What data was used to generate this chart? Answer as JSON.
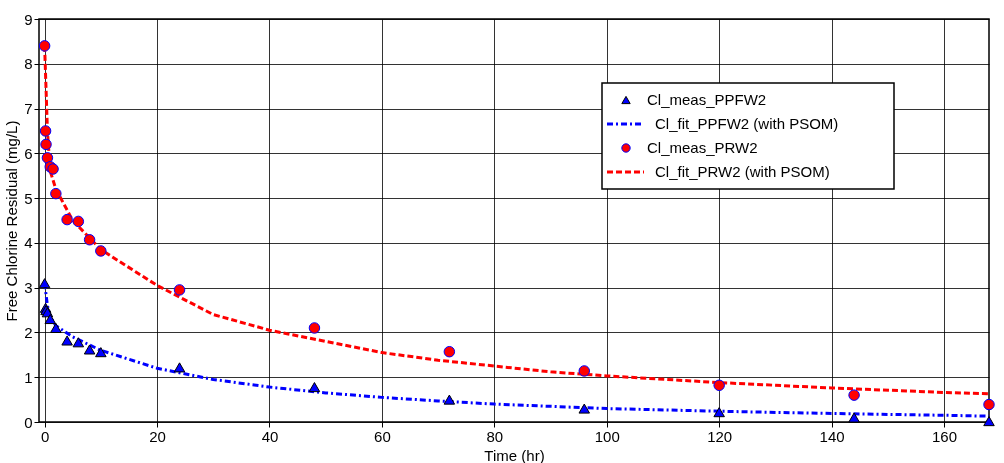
{
  "chart_data": {
    "type": "scatter",
    "xlabel": "Time (hr)",
    "ylabel": "Free Chlorine Residual (mg/L)",
    "xlim": [
      -1,
      168
    ],
    "ylim": [
      0,
      9
    ],
    "xticks": [
      0,
      20,
      40,
      60,
      80,
      100,
      120,
      140,
      160
    ],
    "yticks": [
      0,
      1,
      2,
      3,
      4,
      5,
      6,
      7,
      8,
      9
    ],
    "grid": true,
    "legend": "top right",
    "series": [
      {
        "name": "Cl_meas_PPFW2",
        "marker": "triangle",
        "color": "#0000ff",
        "x": [
          0,
          0.17,
          0.25,
          0.5,
          1,
          2,
          4,
          6,
          8,
          10,
          24,
          48,
          72,
          96,
          120,
          144,
          168
        ],
        "values": [
          3.1,
          2.55,
          2.5,
          2.45,
          2.3,
          2.1,
          1.82,
          1.78,
          1.62,
          1.56,
          1.22,
          0.78,
          0.5,
          0.3,
          0.22,
          0.1,
          0.02
        ]
      },
      {
        "name": "Cl_fit_PPFW2 (with PSOM)",
        "type": "line",
        "line_style": "dashdot",
        "color": "#0000ff",
        "x": [
          0,
          0.5,
          1,
          2,
          5,
          10,
          20,
          30,
          40,
          50,
          60,
          70,
          80,
          90,
          100,
          120,
          140,
          160,
          168
        ],
        "values": [
          3.1,
          2.6,
          2.35,
          2.15,
          1.9,
          1.6,
          1.2,
          0.95,
          0.78,
          0.65,
          0.55,
          0.47,
          0.4,
          0.35,
          0.3,
          0.24,
          0.19,
          0.15,
          0.13
        ]
      },
      {
        "name": "Cl_meas_PRW2",
        "marker": "circle",
        "color": "#ff0000",
        "x": [
          0,
          0.17,
          0.25,
          0.5,
          1,
          1.5,
          2,
          4,
          6,
          8,
          10,
          24,
          48,
          72,
          96,
          120,
          144,
          168
        ],
        "values": [
          8.4,
          6.5,
          6.2,
          5.9,
          5.7,
          5.65,
          5.1,
          4.52,
          4.48,
          4.07,
          3.82,
          2.95,
          2.1,
          1.57,
          1.14,
          0.82,
          0.6,
          0.39
        ]
      },
      {
        "name": "Cl_fit_PRW2 (with PSOM)",
        "type": "line",
        "line_style": "dashed",
        "color": "#ff0000",
        "x": [
          0,
          0.5,
          1,
          2,
          5,
          10,
          20,
          30,
          40,
          50,
          60,
          70,
          80,
          90,
          100,
          120,
          140,
          160,
          168
        ],
        "values": [
          8.4,
          6.5,
          5.6,
          5.2,
          4.5,
          3.85,
          3.05,
          2.4,
          2.05,
          1.8,
          1.55,
          1.38,
          1.25,
          1.12,
          1.03,
          0.88,
          0.76,
          0.66,
          0.63
        ]
      }
    ]
  }
}
